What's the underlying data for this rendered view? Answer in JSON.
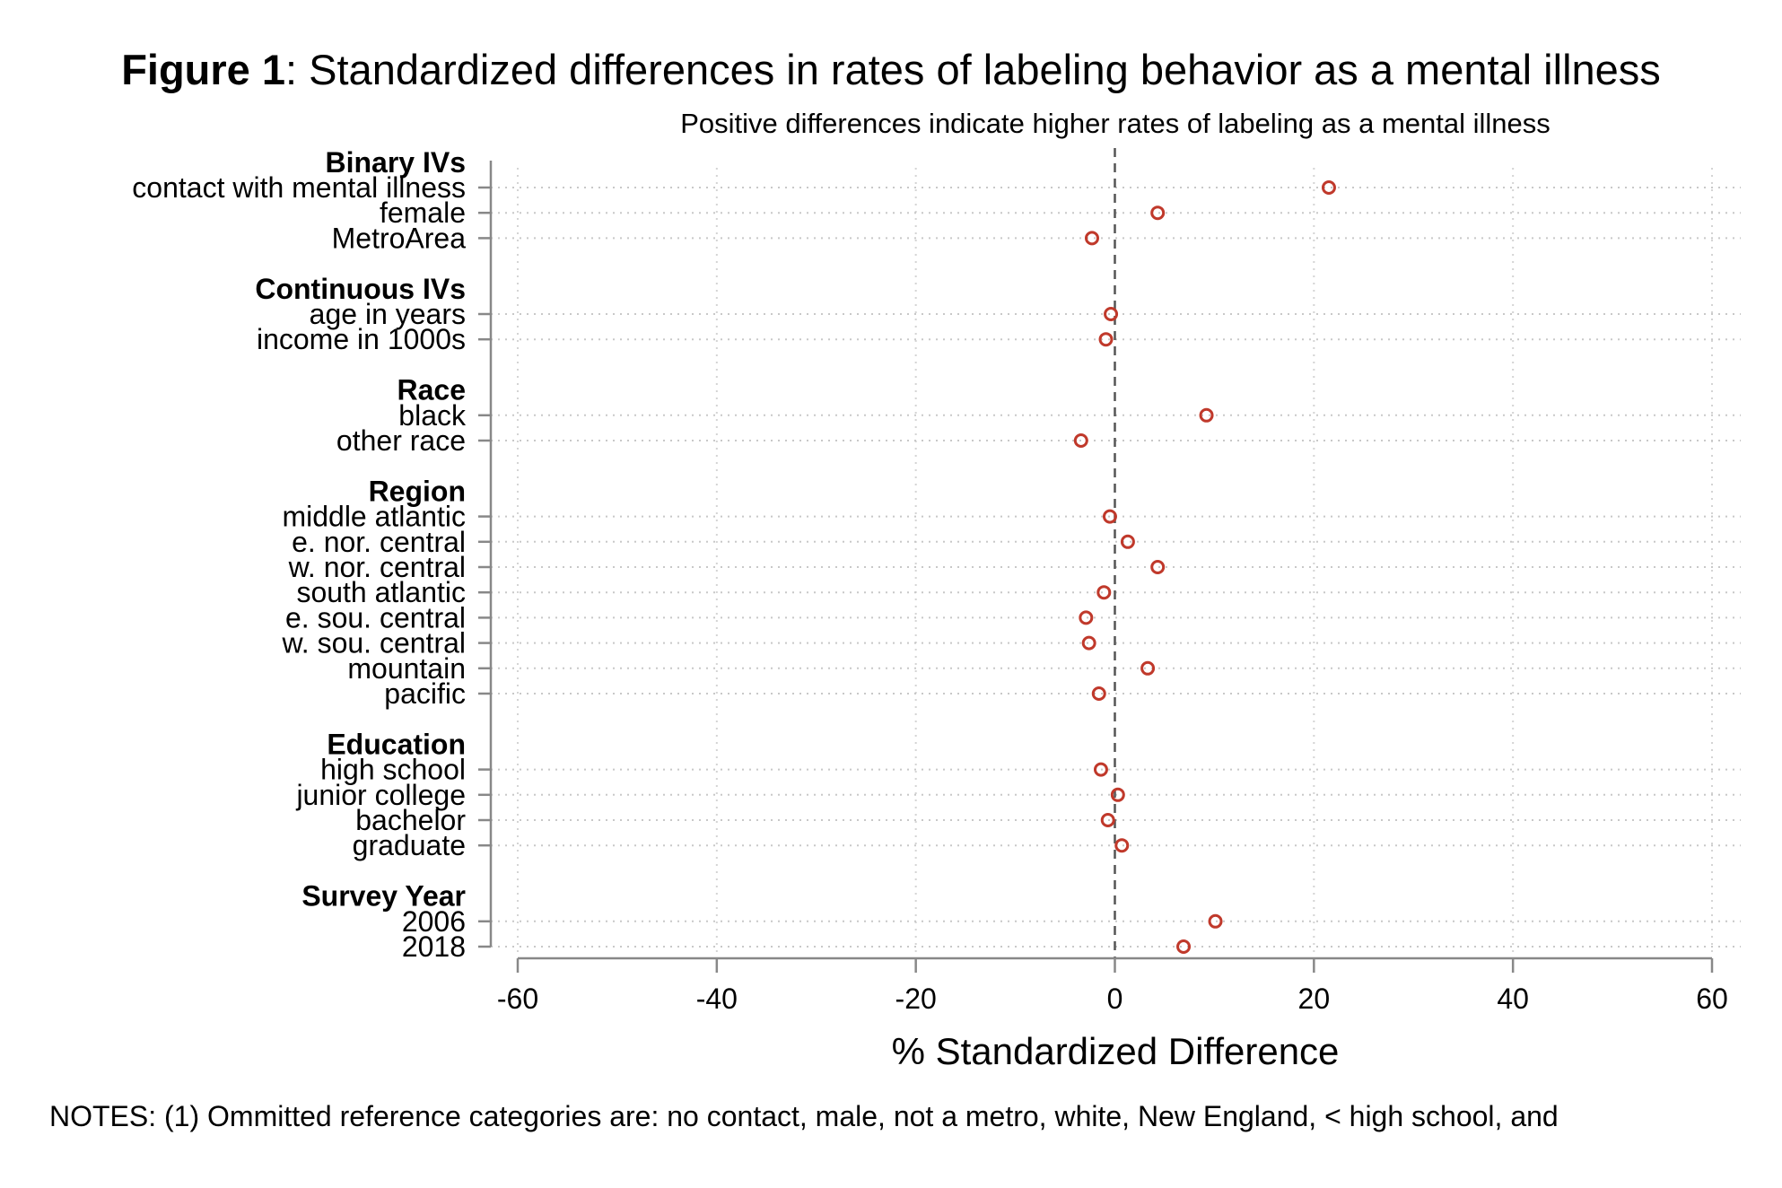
{
  "figure": {
    "label": "Figure 1",
    "title_rest": ": Standardized differences in rates of labeling behavior as a mental illness",
    "notes": "NOTES: (1) Ommitted reference categories are: no contact, male, not a metro, white, New England, < high school, and"
  },
  "chart_data": {
    "type": "scatter",
    "title": "Figure 1: Standardized differences in rates of labeling behavior as a mental illness",
    "subtitle": "Positive differences indicate higher rates of labeling as a mental illness",
    "xlabel": "% Standardized Difference",
    "ylabel": "",
    "xlim": [
      -60,
      60
    ],
    "xticks": [
      -60,
      -40,
      -20,
      0,
      20,
      40,
      60
    ],
    "reference_line": 0,
    "grid": true,
    "marker": "hollow-circle",
    "marker_color": "#c0392b",
    "groups": [
      {
        "header": "Binary IVs",
        "items": [
          {
            "label": "contact with mental illness",
            "value": 21.5
          },
          {
            "label": "female",
            "value": 4.3
          },
          {
            "label": "MetroArea",
            "value": -2.3
          }
        ]
      },
      {
        "header": "Continuous IVs",
        "items": [
          {
            "label": "age in years",
            "value": -0.4
          },
          {
            "label": "income in 1000s",
            "value": -0.9
          }
        ]
      },
      {
        "header": "Race",
        "items": [
          {
            "label": "black",
            "value": 9.2
          },
          {
            "label": "other race",
            "value": -3.4
          }
        ]
      },
      {
        "header": "Region",
        "items": [
          {
            "label": "middle atlantic",
            "value": -0.5
          },
          {
            "label": "e. nor. central",
            "value": 1.3
          },
          {
            "label": "w. nor. central",
            "value": 4.3
          },
          {
            "label": "south atlantic",
            "value": -1.1
          },
          {
            "label": "e. sou. central",
            "value": -2.9
          },
          {
            "label": "w. sou. central",
            "value": -2.6
          },
          {
            "label": "mountain",
            "value": 3.3
          },
          {
            "label": "pacific",
            "value": -1.6
          }
        ]
      },
      {
        "header": "Education",
        "items": [
          {
            "label": "high school",
            "value": -1.4
          },
          {
            "label": "junior college",
            "value": 0.3
          },
          {
            "label": "bachelor",
            "value": -0.7
          },
          {
            "label": "graduate",
            "value": 0.7
          }
        ]
      },
      {
        "header": "Survey Year",
        "items": [
          {
            "label": "2006",
            "value": 10.1
          },
          {
            "label": "2018",
            "value": 6.9
          }
        ]
      }
    ]
  }
}
